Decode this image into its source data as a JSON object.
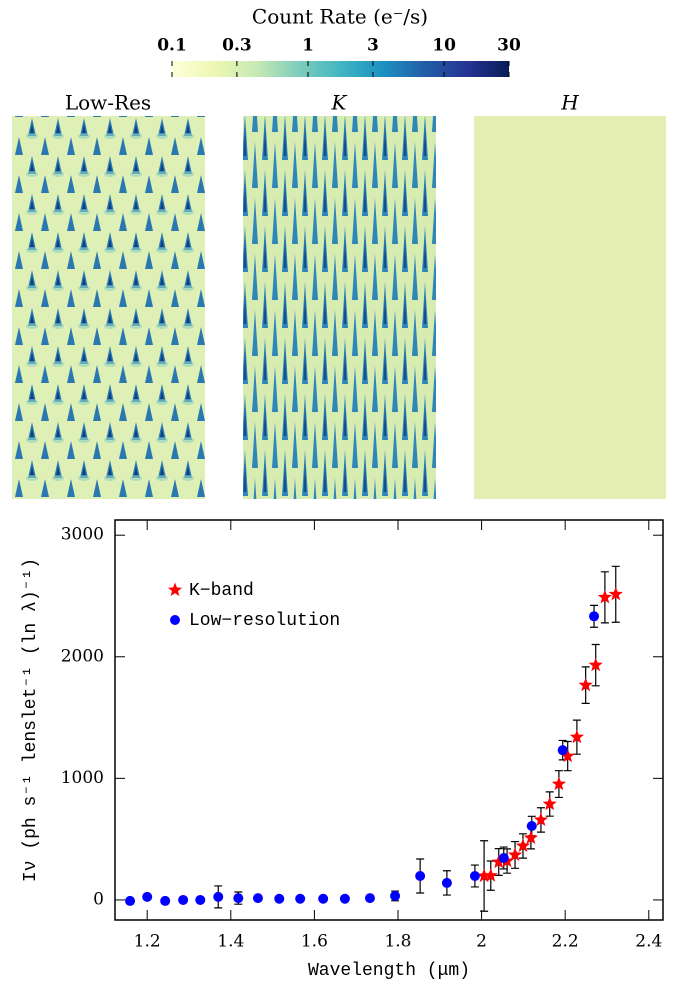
{
  "chart_data": [
    {
      "type": "colorbar",
      "title": "Count Rate (e⁻/s)",
      "xlim": [
        0.1,
        30
      ],
      "xticks": [
        0.1,
        0.3,
        1,
        3,
        10,
        30
      ],
      "log_scale": true,
      "colors": [
        "#ffffd9",
        "#edf8b1",
        "#c7e9b4",
        "#7fcdbb",
        "#41b6c4",
        "#1d91c0",
        "#225ea8",
        "#253494",
        "#081d58"
      ]
    },
    {
      "type": "scatter",
      "xlabel": "Wavelength (μm)",
      "ylabel": "Iν (ph s⁻¹ lenslet⁻¹ (ln λ)⁻¹)",
      "xlim": [
        1.123,
        2.434
      ],
      "ylim": [
        -165,
        3125
      ],
      "xticks": [
        1.2,
        1.4,
        1.6,
        1.8,
        2,
        2.2,
        2.4
      ],
      "yticks": [
        0,
        1000,
        2000,
        3000
      ],
      "legend": "upper left",
      "series": [
        {
          "name": "K−band",
          "color": "#ff0000",
          "marker": "star",
          "x": [
            2.006,
            2.022,
            2.041,
            2.061,
            2.08,
            2.099,
            2.118,
            2.142,
            2.163,
            2.185,
            2.206,
            2.228,
            2.249,
            2.273,
            2.295,
            2.321
          ],
          "values": [
            197,
            200,
            312,
            320,
            370,
            444,
            510,
            658,
            789,
            953,
            1183,
            1339,
            1767,
            1931,
            2489,
            2514
          ],
          "errors": [
            290,
            120,
            110,
            100,
            110,
            100,
            90,
            100,
            100,
            110,
            120,
            140,
            150,
            170,
            210,
            230
          ]
        },
        {
          "name": "Low−resolution",
          "color": "#0000ff",
          "marker": "circle",
          "x": [
            1.159,
            1.2,
            1.243,
            1.286,
            1.327,
            1.37,
            1.418,
            1.465,
            1.516,
            1.566,
            1.621,
            1.673,
            1.733,
            1.793,
            1.853,
            1.917,
            1.984,
            2.053,
            2.12,
            2.194,
            2.269
          ],
          "values": [
            -8,
            25,
            -8,
            0,
            0,
            25,
            15,
            15,
            10,
            10,
            10,
            10,
            15,
            33,
            197,
            140,
            197,
            345,
            608,
            1232,
            2333
          ],
          "errors": [
            10,
            10,
            10,
            10,
            10,
            90,
            50,
            15,
            15,
            15,
            10,
            10,
            10,
            40,
            140,
            100,
            90,
            90,
            80,
            80,
            90
          ]
        }
      ]
    }
  ],
  "panels": [
    {
      "title": "Low-Res"
    },
    {
      "title": "K"
    },
    {
      "title": "H"
    }
  ]
}
